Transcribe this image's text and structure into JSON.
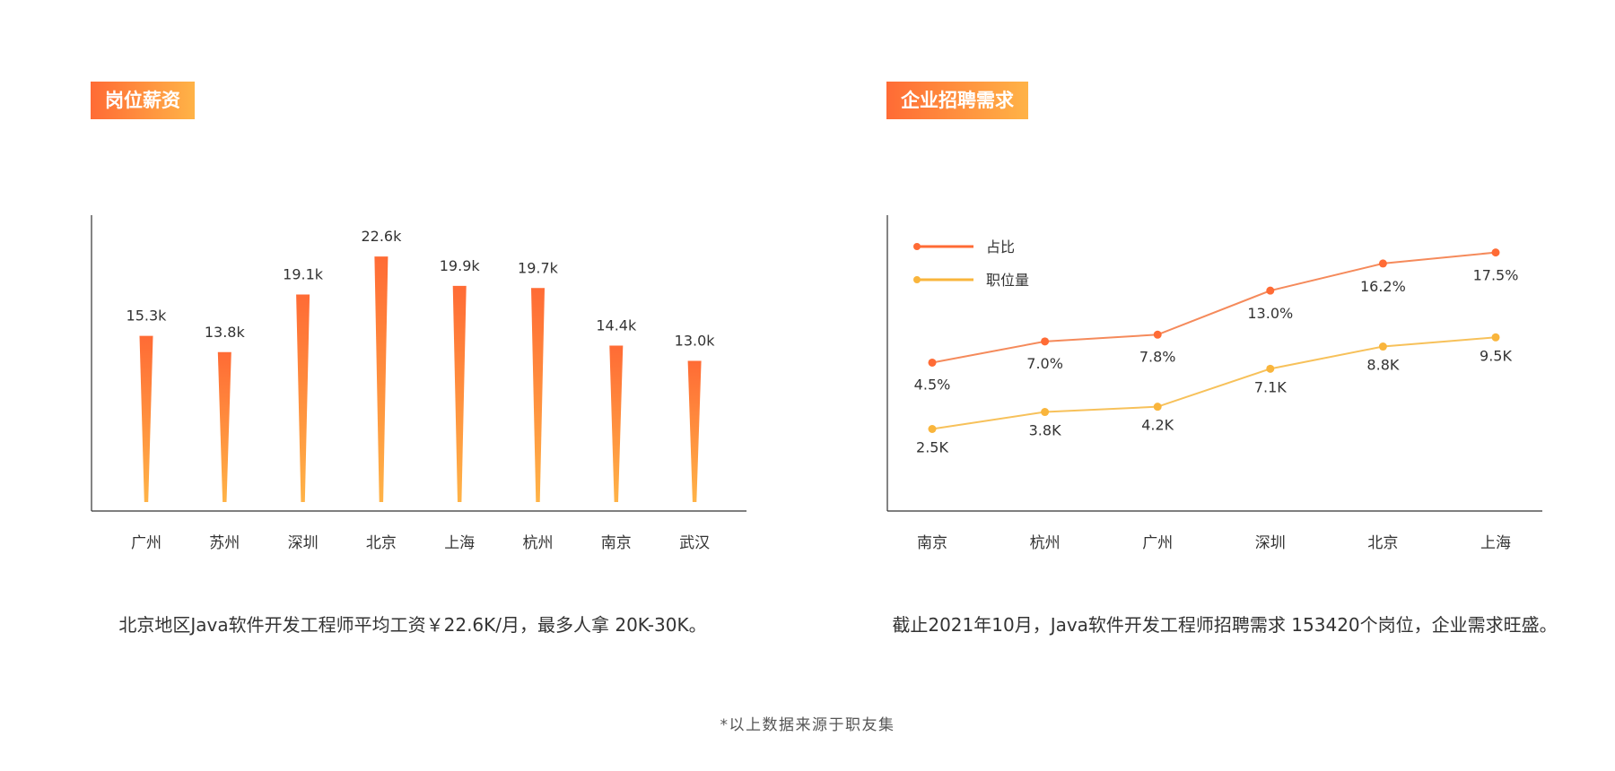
{
  "colors": {
    "accent": "#ff6b35",
    "accent_light": "#ffb347",
    "line_ratio": "#f58a5b",
    "line_positions": "#f7c15a",
    "axis": "#333333"
  },
  "salary_section": {
    "tag": "岗位薪资",
    "caption": "北京地区Java软件开发工程师平均工资￥22.6K/月，最多人拿 20K-30K。"
  },
  "demand_section": {
    "tag": "企业招聘需求",
    "caption": "截止2021年10月，Java软件开发工程师招聘需求 153420个岗位，企业需求旺盛。"
  },
  "footer": "*以上数据来源于职友集",
  "chart_data": [
    {
      "type": "bar",
      "title": "",
      "categories": [
        "广州",
        "苏州",
        "深圳",
        "北京",
        "上海",
        "杭州",
        "南京",
        "武汉"
      ],
      "values": [
        15.3,
        13.8,
        19.1,
        22.6,
        19.9,
        19.7,
        14.4,
        13.0
      ],
      "labels": [
        "15.3k",
        "13.8k",
        "19.1k",
        "22.6k",
        "19.9k",
        "19.7k",
        "14.4k",
        "13.0k"
      ],
      "unit": "k",
      "ylim": [
        0,
        25
      ],
      "grid": false
    },
    {
      "type": "line",
      "title": "",
      "categories": [
        "南京",
        "杭州",
        "广州",
        "深圳",
        "北京",
        "上海"
      ],
      "legend_position": "top-left",
      "grid": false,
      "series": [
        {
          "name": "占比",
          "values": [
            4.5,
            7.0,
            7.8,
            13.0,
            16.2,
            17.5
          ],
          "labels": [
            "4.5%",
            "7.0%",
            "7.8%",
            "13.0%",
            "16.2%",
            "17.5%"
          ],
          "color": "#f58a5b",
          "dot_color": "#ff6b35"
        },
        {
          "name": "职位量",
          "values": [
            2.5,
            3.8,
            4.2,
            7.1,
            8.8,
            9.5
          ],
          "labels": [
            "2.5K",
            "3.8K",
            "4.2K",
            "7.1K",
            "8.8K",
            "9.5K"
          ],
          "color": "#f7c15a",
          "dot_color": "#f9b53c"
        }
      ]
    }
  ]
}
